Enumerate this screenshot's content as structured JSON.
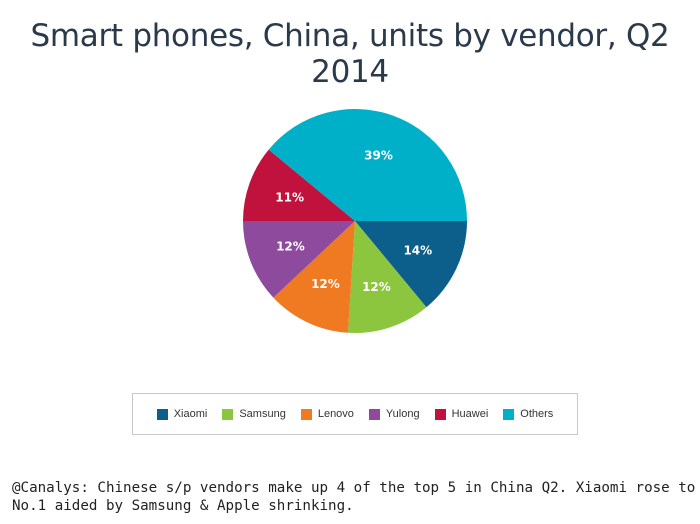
{
  "chart_data": {
    "type": "pie",
    "title": "Smart phones, China, units by vendor, Q2 2014",
    "categories": [
      "Xiaomi",
      "Samsung",
      "Lenovo",
      "Yulong",
      "Huawei",
      "Others"
    ],
    "values": [
      14,
      12,
      12,
      12,
      11,
      39
    ],
    "value_labels": [
      "14%",
      "12%",
      "12%",
      "12%",
      "11%",
      "39%"
    ],
    "colors": [
      "#0c5f8a",
      "#8cc63f",
      "#f07a22",
      "#8e4b9e",
      "#c0123c",
      "#00b0c8"
    ],
    "legend": "bottom"
  },
  "caption": "@Canalys: Chinese s/p vendors make up 4 of the top 5 in China Q2. Xiaomi rose to No.1 aided by Samsung & Apple shrinking."
}
